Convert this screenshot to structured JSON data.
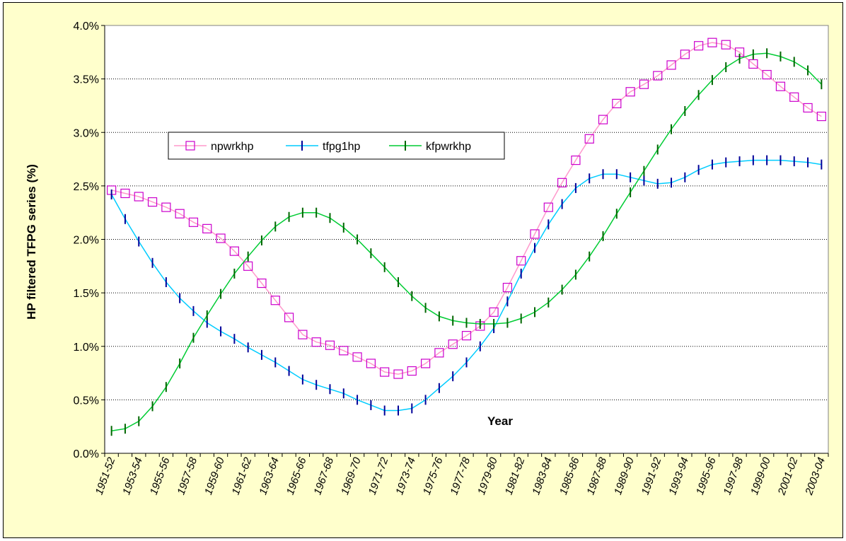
{
  "chart_data": {
    "type": "line",
    "title": "",
    "xlabel": "Year",
    "ylabel": "HP filtered TFPG series (%)",
    "ylim": [
      0,
      4
    ],
    "y_ticks": [
      "0.0%",
      "0.5%",
      "1.0%",
      "1.5%",
      "2.0%",
      "2.5%",
      "3.0%",
      "3.5%",
      "4.0%"
    ],
    "y_tick_values": [
      0,
      0.5,
      1,
      1.5,
      2,
      2.5,
      3,
      3.5,
      4
    ],
    "grid": "horizontal dotted",
    "legend_position": "upper-left",
    "background": "#ffffcc",
    "plot_background": "#ffffff",
    "categories": [
      "1951-52",
      "1952-53",
      "1953-54",
      "1954-55",
      "1955-56",
      "1956-57",
      "1957-58",
      "1958-59",
      "1959-60",
      "1960-61",
      "1961-62",
      "1962-63",
      "1963-64",
      "1964-65",
      "1965-66",
      "1966-67",
      "1967-68",
      "1968-69",
      "1969-70",
      "1970-71",
      "1971-72",
      "1972-73",
      "1973-74",
      "1974-75",
      "1975-76",
      "1976-77",
      "1977-78",
      "1978-79",
      "1979-80",
      "1980-81",
      "1981-82",
      "1982-83",
      "1983-84",
      "1984-85",
      "1985-86",
      "1986-87",
      "1987-88",
      "1988-89",
      "1989-90",
      "1990-91",
      "1991-92",
      "1992-93",
      "1993-94",
      "1994-95",
      "1995-96",
      "1996-97",
      "1997-98",
      "1998-99",
      "1999-00",
      "2000-01",
      "2001-02",
      "2002-03",
      "2003-04"
    ],
    "series": [
      {
        "name": "npwrkhp",
        "color": "#ff99cc",
        "marker_color": "#cc00cc",
        "marker": "square",
        "values": [
          2.46,
          2.43,
          2.4,
          2.35,
          2.3,
          2.24,
          2.16,
          2.1,
          2.01,
          1.89,
          1.75,
          1.59,
          1.43,
          1.27,
          1.11,
          1.04,
          1.01,
          0.96,
          0.9,
          0.84,
          0.76,
          0.74,
          0.77,
          0.84,
          0.94,
          1.02,
          1.1,
          1.19,
          1.32,
          1.55,
          1.8,
          2.05,
          2.3,
          2.53,
          2.74,
          2.94,
          3.12,
          3.27,
          3.38,
          3.45,
          3.53,
          3.63,
          3.73,
          3.81,
          3.84,
          3.82,
          3.75,
          3.64,
          3.54,
          3.43,
          3.33,
          3.23,
          3.15
        ]
      },
      {
        "name": "tfpg1hp",
        "color": "#00ccff",
        "marker_color": "#000099",
        "marker": "vbar",
        "values": [
          2.42,
          2.19,
          1.98,
          1.78,
          1.6,
          1.45,
          1.33,
          1.22,
          1.14,
          1.07,
          0.99,
          0.92,
          0.85,
          0.77,
          0.69,
          0.64,
          0.6,
          0.56,
          0.5,
          0.45,
          0.4,
          0.4,
          0.42,
          0.5,
          0.61,
          0.72,
          0.85,
          1.0,
          1.17,
          1.42,
          1.68,
          1.92,
          2.14,
          2.33,
          2.48,
          2.57,
          2.61,
          2.61,
          2.58,
          2.55,
          2.52,
          2.53,
          2.58,
          2.65,
          2.7,
          2.72,
          2.73,
          2.74,
          2.74,
          2.74,
          2.73,
          2.72,
          2.7
        ]
      },
      {
        "name": "kfpwrkhp",
        "color": "#00cc33",
        "marker_color": "#006600",
        "marker": "vbar",
        "values": [
          0.21,
          0.23,
          0.3,
          0.44,
          0.62,
          0.84,
          1.08,
          1.29,
          1.49,
          1.68,
          1.84,
          1.99,
          2.12,
          2.21,
          2.25,
          2.25,
          2.2,
          2.11,
          2.0,
          1.87,
          1.74,
          1.6,
          1.47,
          1.36,
          1.28,
          1.24,
          1.22,
          1.21,
          1.21,
          1.22,
          1.26,
          1.32,
          1.41,
          1.53,
          1.67,
          1.84,
          2.03,
          2.24,
          2.44,
          2.64,
          2.84,
          3.03,
          3.2,
          3.35,
          3.49,
          3.61,
          3.69,
          3.73,
          3.74,
          3.71,
          3.66,
          3.58,
          3.45
        ]
      }
    ]
  }
}
